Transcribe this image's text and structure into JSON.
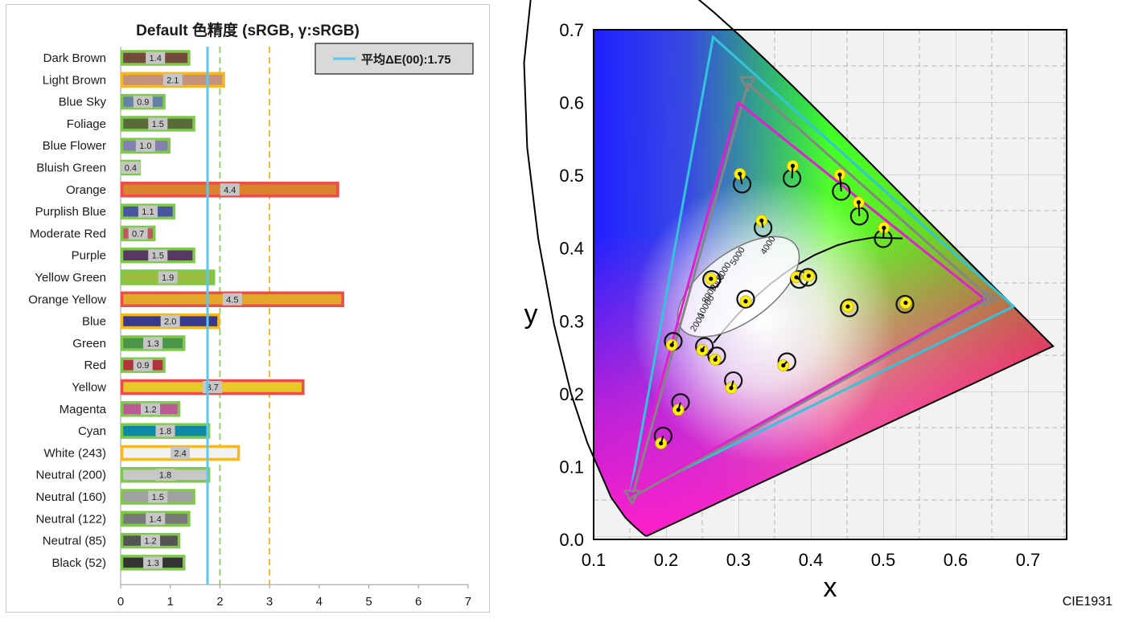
{
  "chart_data": [
    {
      "type": "bar",
      "title": "Default 色精度 (sRGB, γ:sRGB)",
      "legend": {
        "label": "平均ΔE(00):1.75",
        "placement": "top-right",
        "color": "#5bc8f0"
      },
      "average": 1.75,
      "reference_lines": [
        {
          "value": 2,
          "color": "#8fd46c",
          "style": "dashed"
        },
        {
          "value": 3,
          "color": "#f5b52c",
          "style": "dashed"
        }
      ],
      "xlim": [
        0,
        7
      ],
      "xticks": [
        "0",
        "1",
        "2",
        "3",
        "4",
        "5",
        "6",
        "7"
      ],
      "categories": [
        "Dark Brown",
        "Light Brown",
        "Blue Sky",
        "Foliage",
        "Blue Flower",
        "Bluish Green",
        "Orange",
        "Purplish Blue",
        "Moderate Red",
        "Purple",
        "Yellow Green",
        "Orange Yellow",
        "Blue",
        "Green",
        "Red",
        "Yellow",
        "Magenta",
        "Cyan",
        "White (243)",
        "Neutral (200)",
        "Neutral (160)",
        "Neutral (122)",
        "Neutral (85)",
        "Black (52)"
      ],
      "values": [
        1.4,
        2.1,
        0.9,
        1.5,
        1.0,
        0.4,
        4.4,
        1.1,
        0.7,
        1.5,
        1.9,
        4.5,
        2.0,
        1.3,
        0.9,
        3.7,
        1.2,
        1.8,
        2.4,
        1.8,
        1.5,
        1.4,
        1.2,
        1.3
      ],
      "value_labels": [
        "1.4",
        "2.1",
        "0.9",
        "1.5",
        "1.0",
        "0.4",
        "4.4",
        "1.1",
        "0.7",
        "1.5",
        "1.9",
        "4.5",
        "2.0",
        "1.3",
        "0.9",
        "3.7",
        "1.2",
        "1.8",
        "2.4",
        "1.8",
        "1.5",
        "1.4",
        "1.2",
        "1.3"
      ],
      "bar_colors": [
        "#774a3e",
        "#c5917d",
        "#6581a8",
        "#5a6b3b",
        "#8680b3",
        "#60bdaa",
        "#d9832a",
        "#4a55a0",
        "#c25562",
        "#5a3866",
        "#9bbd3f",
        "#e3a72c",
        "#373a8d",
        "#4a9548",
        "#b3333d",
        "#e8c728",
        "#bb5a97",
        "#0d88a6",
        "#f2f2f2",
        "#c8c8c8",
        "#a0a0a0",
        "#7a7a7a",
        "#555555",
        "#343434"
      ],
      "grade_colors": {
        "good": "#7ec84a",
        "fair": "#f5b822",
        "poor": "#ef4b4b"
      }
    },
    {
      "type": "scatter",
      "label": "CIE1931",
      "xlabel": "x",
      "ylabel": "y",
      "xlim": [
        0.1,
        0.75
      ],
      "ylim": [
        0.0,
        0.7
      ],
      "xticks": [
        "0.1",
        "0.2",
        "0.3",
        "0.4",
        "0.5",
        "0.6",
        "0.7"
      ],
      "yticks": [
        "0.0",
        "0.1",
        "0.2",
        "0.3",
        "0.4",
        "0.5",
        "0.6",
        "0.7"
      ],
      "locus_labels": [
        "2000",
        "10000",
        "8000",
        "7000",
        "6000",
        "5000",
        "4000"
      ],
      "gamut_triangles": [
        {
          "color": "#33c4d8",
          "points": [
            [
              0.68,
              0.32
            ],
            [
              0.265,
              0.69
            ],
            [
              0.15,
              0.06
            ]
          ]
        },
        {
          "color": "#858585",
          "points": [
            [
              0.648,
              0.331
            ],
            [
              0.313,
              0.626
            ],
            [
              0.153,
              0.058
            ]
          ]
        },
        {
          "color": "#e020d0",
          "points": [
            [
              0.64,
              0.33
            ],
            [
              0.3,
              0.6
            ],
            [
              0.15,
              0.06
            ]
          ]
        }
      ],
      "target_points": [
        [
          0.305,
          0.488
        ],
        [
          0.374,
          0.496
        ],
        [
          0.442,
          0.478
        ],
        [
          0.467,
          0.444
        ],
        [
          0.5,
          0.413
        ],
        [
          0.334,
          0.428
        ],
        [
          0.263,
          0.357
        ],
        [
          0.31,
          0.33
        ],
        [
          0.384,
          0.357
        ],
        [
          0.396,
          0.36
        ],
        [
          0.453,
          0.318
        ],
        [
          0.53,
          0.323
        ],
        [
          0.21,
          0.272
        ],
        [
          0.253,
          0.265
        ],
        [
          0.27,
          0.252
        ],
        [
          0.367,
          0.244
        ],
        [
          0.293,
          0.218
        ],
        [
          0.22,
          0.188
        ],
        [
          0.196,
          0.142
        ]
      ],
      "measured_points": [
        [
          0.302,
          0.502
        ],
        [
          0.375,
          0.513
        ],
        [
          0.44,
          0.501
        ],
        [
          0.466,
          0.463
        ],
        [
          0.501,
          0.428
        ],
        [
          0.332,
          0.438
        ],
        [
          0.262,
          0.358
        ],
        [
          0.31,
          0.327
        ],
        [
          0.38,
          0.36
        ],
        [
          0.397,
          0.362
        ],
        [
          0.451,
          0.32
        ],
        [
          0.531,
          0.325
        ],
        [
          0.208,
          0.267
        ],
        [
          0.25,
          0.26
        ],
        [
          0.268,
          0.247
        ],
        [
          0.362,
          0.239
        ],
        [
          0.29,
          0.208
        ],
        [
          0.217,
          0.178
        ],
        [
          0.193,
          0.132
        ]
      ]
    }
  ]
}
